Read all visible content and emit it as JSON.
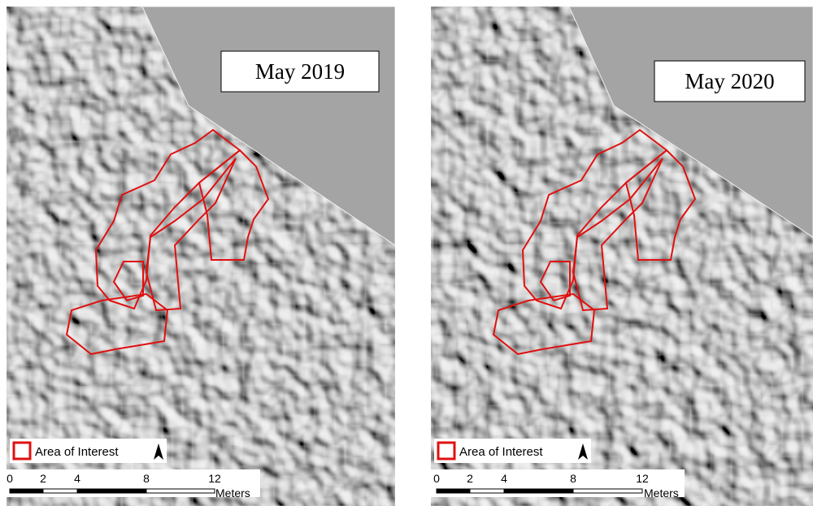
{
  "panels": [
    {
      "title": "May 2019",
      "legend": "Area of Interest",
      "scale_labels": [
        "0",
        "2",
        "4",
        "8",
        "12"
      ],
      "scale_unit": "Meters"
    },
    {
      "title": "May 2020",
      "legend": "Area of Interest",
      "scale_labels": [
        "0",
        "2",
        "4",
        "8",
        "12"
      ],
      "scale_unit": "Meters"
    }
  ]
}
